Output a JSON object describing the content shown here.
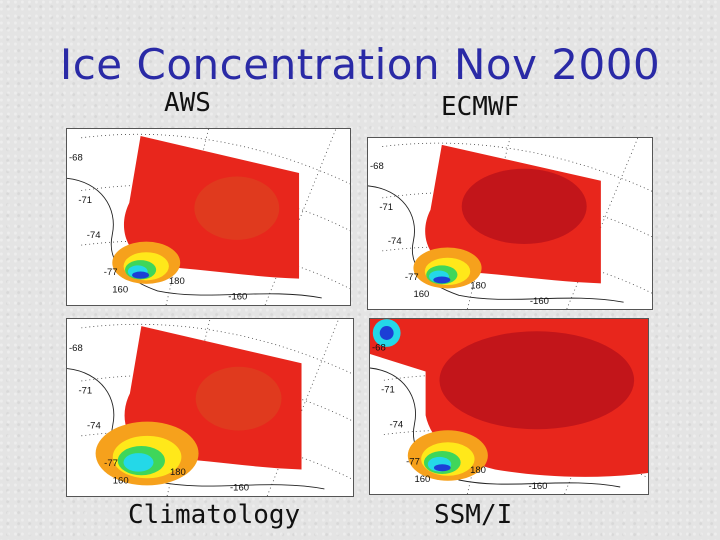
{
  "title": "Ice Concentration Nov 2000",
  "panels": [
    {
      "label": "AWS",
      "variant": "aws"
    },
    {
      "label": "ECMWF",
      "variant": "ecmwf"
    },
    {
      "label": "Climatology",
      "variant": "clim"
    },
    {
      "label": "SSM/I",
      "variant": "ssmi"
    }
  ],
  "map_labels": {
    "lat1": "-68",
    "lat2": "-71",
    "lat3": "-74",
    "lat4": "-77",
    "lon1": "160",
    "lon2": "180",
    "lon3": "-160"
  },
  "colors": {
    "title": "#2a2aa6",
    "ice_high": "#e8261c",
    "ice_dark": "#c2151a",
    "ice_mid": "#f6a11c",
    "ice_low": "#ffe81a",
    "water_green": "#3fd65a",
    "water_cyan": "#24d8e8",
    "water_blue": "#1c3fd6"
  }
}
